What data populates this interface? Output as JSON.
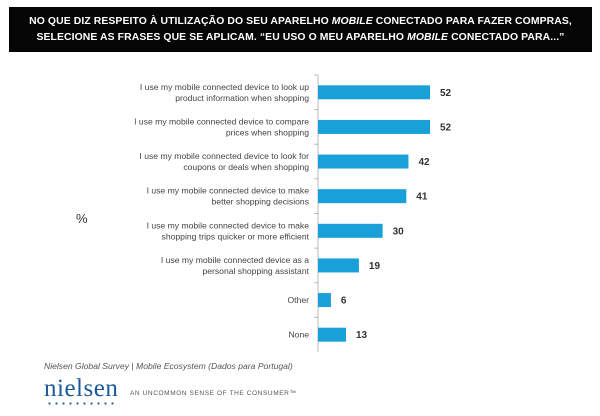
{
  "header": {
    "line1_pre": "NO QUE DIZ RESPEITO À UTILIZAÇÃO DO SEU APARELHO ",
    "line1_em": "MOBILE",
    "line1_post": " CONECTADO PARA FAZER COMPRAS,",
    "line2_pre": "SELECIONE AS FRASES QUE SE APLICAM. “EU USO O MEU APARELHO ",
    "line2_em": "MOBILE",
    "line2_post": " CONECTADO PARA...”"
  },
  "y_axis_label": "%",
  "source": "Nielsen Global Survey | Mobile Ecosystem (Dados para Portugal)",
  "brand": {
    "logo_text": "nielsen",
    "tagline": "AN UNCOMMON SENSE OF THE CONSUMER™"
  },
  "colors": {
    "bar": "#1aa0d8",
    "header_bg": "#050505",
    "logo": "#1a5a9a"
  },
  "chart_data": {
    "type": "bar",
    "orientation": "horizontal",
    "categories": [
      [
        "I use my mobile connected device to look up",
        "product information when shopping"
      ],
      [
        "I use my mobile connected device to compare",
        "prices when shopping"
      ],
      [
        "I use my mobile connected device to look for",
        "coupons or deals when shopping"
      ],
      [
        "I use my mobile connected device to make",
        "better shopping decisions"
      ],
      [
        "I use my mobile connected device to make",
        "shopping trips quicker or more efficient"
      ],
      [
        "I use my mobile connected device as a",
        "personal shopping assistant"
      ],
      [
        "Other"
      ],
      [
        "None"
      ]
    ],
    "values": [
      52,
      52,
      42,
      41,
      30,
      19,
      6,
      13
    ],
    "xlim": [
      0,
      60
    ],
    "grid": false,
    "data_labels": true
  }
}
